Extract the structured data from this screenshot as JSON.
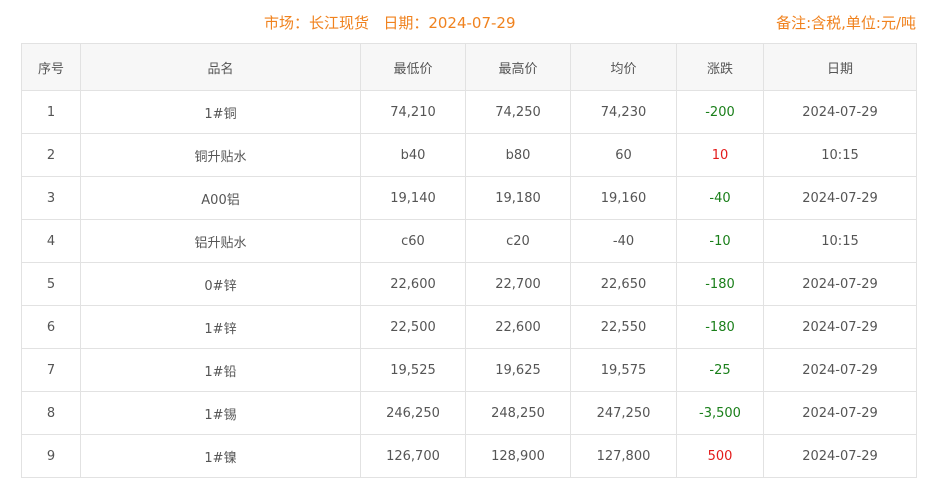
{
  "header": {
    "market_label": "市场：长江现货",
    "date_label": "日期：2024-07-29",
    "note": "备注:含税,单位:元/吨"
  },
  "colors": {
    "accent": "#f0821e",
    "down": "#1a7f1a",
    "up": "#e31b1b"
  },
  "table": {
    "columns": [
      "序号",
      "品名",
      "最低价",
      "最高价",
      "均价",
      "涨跌",
      "日期"
    ],
    "rows": [
      {
        "no": "1",
        "name": "1#铜",
        "low": "74,210",
        "high": "74,250",
        "avg": "74,230",
        "change": "-200",
        "dir": "down",
        "date": "2024-07-29"
      },
      {
        "no": "2",
        "name": "铜升贴水",
        "low": "b40",
        "high": "b80",
        "avg": "60",
        "change": "10",
        "dir": "up",
        "date": "10:15"
      },
      {
        "no": "3",
        "name": "A00铝",
        "low": "19,140",
        "high": "19,180",
        "avg": "19,160",
        "change": "-40",
        "dir": "down",
        "date": "2024-07-29"
      },
      {
        "no": "4",
        "name": "铝升贴水",
        "low": "c60",
        "high": "c20",
        "avg": "-40",
        "change": "-10",
        "dir": "down",
        "date": "10:15"
      },
      {
        "no": "5",
        "name": "0#锌",
        "low": "22,600",
        "high": "22,700",
        "avg": "22,650",
        "change": "-180",
        "dir": "down",
        "date": "2024-07-29"
      },
      {
        "no": "6",
        "name": "1#锌",
        "low": "22,500",
        "high": "22,600",
        "avg": "22,550",
        "change": "-180",
        "dir": "down",
        "date": "2024-07-29"
      },
      {
        "no": "7",
        "name": "1#铅",
        "low": "19,525",
        "high": "19,625",
        "avg": "19,575",
        "change": "-25",
        "dir": "down",
        "date": "2024-07-29"
      },
      {
        "no": "8",
        "name": "1#锡",
        "low": "246,250",
        "high": "248,250",
        "avg": "247,250",
        "change": "-3,500",
        "dir": "down",
        "date": "2024-07-29"
      },
      {
        "no": "9",
        "name": "1#镍",
        "low": "126,700",
        "high": "128,900",
        "avg": "127,800",
        "change": "500",
        "dir": "up",
        "date": "2024-07-29"
      }
    ]
  }
}
